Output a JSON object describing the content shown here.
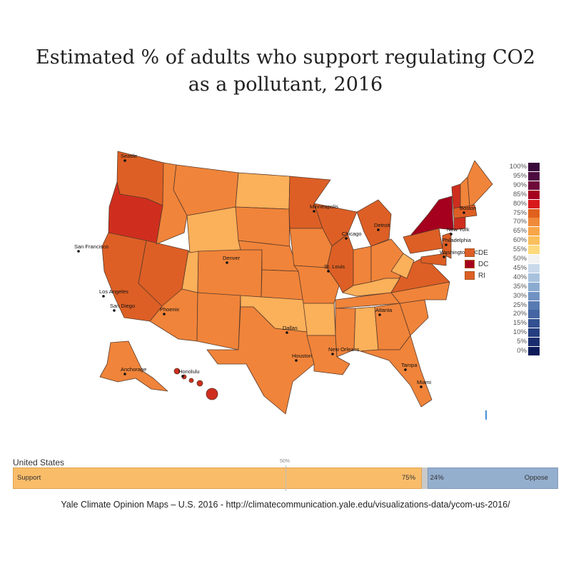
{
  "title_line1": "Estimated % of adults who support regulating CO2",
  "title_line2": "as a pollutant, 2016",
  "colors": {
    "c60": "#fbb05a",
    "c65": "#f99a45",
    "c70": "#f0843a",
    "c75": "#dd5f25",
    "c80": "#cf2e1e",
    "c85": "#a5001e",
    "border": "#5a3a2a"
  },
  "legend": [
    {
      "label": "100%",
      "color": "#3a0a3a"
    },
    {
      "label": "95%",
      "color": "#4d0a3f"
    },
    {
      "label": "90%",
      "color": "#6e0a3a"
    },
    {
      "label": "85%",
      "color": "#a5001e"
    },
    {
      "label": "80%",
      "color": "#d7191c"
    },
    {
      "label": "75%",
      "color": "#e0611e"
    },
    {
      "label": "70%",
      "color": "#f08a3a"
    },
    {
      "label": "65%",
      "color": "#f9a548"
    },
    {
      "label": "60%",
      "color": "#fbbf5c"
    },
    {
      "label": "55%",
      "color": "#fdd97c"
    },
    {
      "label": "50%",
      "color": "#f2f2f2"
    },
    {
      "label": "45%",
      "color": "#c9d9ea"
    },
    {
      "label": "40%",
      "color": "#a8c2de"
    },
    {
      "label": "35%",
      "color": "#8aaad0"
    },
    {
      "label": "30%",
      "color": "#6f92c2"
    },
    {
      "label": "25%",
      "color": "#587bb2"
    },
    {
      "label": "20%",
      "color": "#4465a2"
    },
    {
      "label": "15%",
      "color": "#335091"
    },
    {
      "label": "10%",
      "color": "#253e80"
    },
    {
      "label": "5%",
      "color": "#1a2d6e"
    },
    {
      "label": "0%",
      "color": "#0e1b5a"
    }
  ],
  "small_states": [
    {
      "label": "DE",
      "color": "#dd5f25"
    },
    {
      "label": "DC",
      "color": "#a5001e"
    },
    {
      "label": "RI",
      "color": "#dd5f25"
    }
  ],
  "cities": [
    {
      "name": "Seattle"
    },
    {
      "name": "San Francisco"
    },
    {
      "name": "Los Angeles"
    },
    {
      "name": "San Diego"
    },
    {
      "name": "Phoenix"
    },
    {
      "name": "Denver"
    },
    {
      "name": "Dallas"
    },
    {
      "name": "Houston"
    },
    {
      "name": "Minneapolis"
    },
    {
      "name": "Chicago"
    },
    {
      "name": "St. Louis"
    },
    {
      "name": "Detroit"
    },
    {
      "name": "New Orleans"
    },
    {
      "name": "Atlanta"
    },
    {
      "name": "Tampa"
    },
    {
      "name": "Miami"
    },
    {
      "name": "Boston"
    },
    {
      "name": "New York"
    },
    {
      "name": "Philadelphia"
    },
    {
      "name": "Washington D.C."
    },
    {
      "name": "Anchorage"
    },
    {
      "name": "Honolulu"
    }
  ],
  "national": {
    "label": "United States",
    "midpoint_label": "50%",
    "support_label": "Support",
    "support_value": 75,
    "support_text": "75%",
    "oppose_label": "Oppose",
    "oppose_value": 24,
    "oppose_text": "24%"
  },
  "source": "Yale Climate Opinion Maps – U.S. 2016 - http://climatecommunication.yale.edu/visualizations-data/ycom-us-2016/"
}
